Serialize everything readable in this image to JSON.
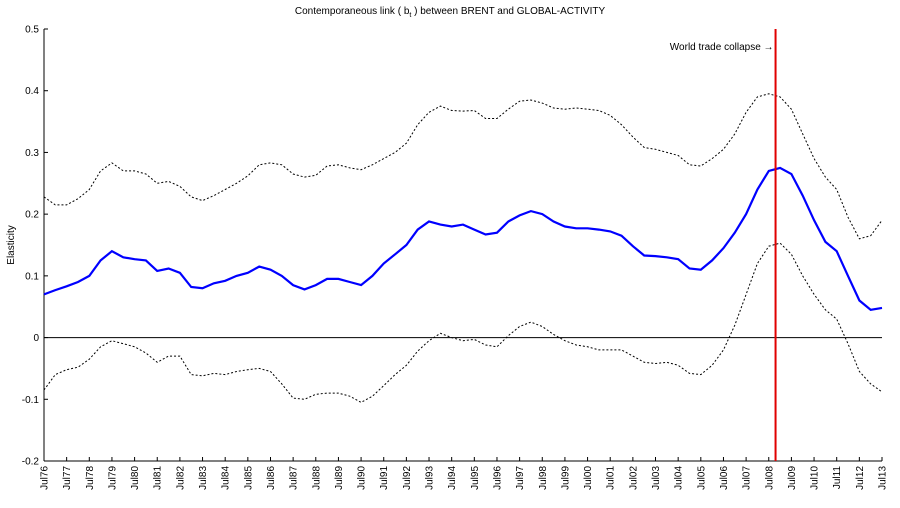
{
  "chart_data": {
    "type": "line",
    "title": "Contemporaneous link ( b",
    "title_subscript": "t",
    "title_end": " ) between BRENT and GLOBAL-ACTIVITY",
    "ylabel": "Elasticity",
    "annotation": {
      "text": "World trade collapse →",
      "color": "#e00000"
    },
    "reference_line": 0,
    "categories": [
      "Jul76",
      null,
      "Jul77",
      null,
      "Jul78",
      null,
      "Jul79",
      null,
      "Jul80",
      null,
      "Jul81",
      null,
      "Jul82",
      null,
      "Jul83",
      null,
      "Jul84",
      null,
      "Jul85",
      null,
      "Jul86",
      null,
      "Jul87",
      null,
      "Jul88",
      null,
      "Jul89",
      null,
      "Jul90",
      null,
      "Jul91",
      null,
      "Jul92",
      null,
      "Jul93",
      null,
      "Jul94",
      null,
      "Jul95",
      null,
      "Jul96",
      null,
      "Jul97",
      null,
      "Jul98",
      null,
      "Jul99",
      null,
      "Jul00",
      null,
      "Jul01",
      null,
      "Jul02",
      null,
      "Jul03",
      null,
      "Jul04",
      null,
      "Jul05",
      null,
      "Jul06",
      null,
      "Jul07",
      null,
      "Jul08",
      null,
      "Jul09",
      null,
      "Jul10",
      null,
      "Jul11",
      null,
      "Jul12",
      null,
      "Jul13"
    ],
    "series": [
      {
        "color": "#0000ff",
        "dashed": false,
        "values": [
          0.07,
          0.077,
          0.083,
          0.09,
          0.1,
          0.125,
          0.14,
          0.13,
          0.127,
          0.125,
          0.108,
          0.112,
          0.105,
          0.082,
          0.08,
          0.088,
          0.092,
          0.1,
          0.105,
          0.115,
          0.11,
          0.1,
          0.085,
          0.078,
          0.085,
          0.095,
          0.095,
          0.09,
          0.085,
          0.1,
          0.12,
          0.135,
          0.15,
          0.175,
          0.188,
          0.183,
          0.18,
          0.183,
          0.175,
          0.167,
          0.17,
          0.188,
          0.198,
          0.205,
          0.2,
          0.188,
          0.18,
          0.177,
          0.177,
          0.175,
          0.172,
          0.165,
          0.148,
          0.133,
          0.132,
          0.13,
          0.127,
          0.112,
          0.11,
          0.125,
          0.145,
          0.17,
          0.2,
          0.24,
          0.27,
          0.275,
          0.265,
          0.23,
          0.19,
          0.155,
          0.14,
          0.1,
          0.06,
          0.045,
          0.048
        ]
      },
      {
        "color": "#000000",
        "dashed": true,
        "values": [
          0.228,
          0.215,
          0.215,
          0.225,
          0.24,
          0.27,
          0.283,
          0.27,
          0.27,
          0.265,
          0.25,
          0.253,
          0.245,
          0.228,
          0.222,
          0.23,
          0.24,
          0.25,
          0.262,
          0.28,
          0.283,
          0.28,
          0.265,
          0.26,
          0.263,
          0.278,
          0.28,
          0.275,
          0.272,
          0.28,
          0.29,
          0.3,
          0.315,
          0.345,
          0.365,
          0.375,
          0.368,
          0.367,
          0.368,
          0.355,
          0.355,
          0.37,
          0.383,
          0.385,
          0.38,
          0.372,
          0.37,
          0.372,
          0.37,
          0.368,
          0.36,
          0.345,
          0.325,
          0.308,
          0.305,
          0.3,
          0.295,
          0.28,
          0.278,
          0.29,
          0.305,
          0.33,
          0.365,
          0.39,
          0.395,
          0.39,
          0.37,
          0.33,
          0.29,
          0.26,
          0.24,
          0.195,
          0.16,
          0.165,
          0.19
        ]
      },
      {
        "color": "#000000",
        "dashed": true,
        "values": [
          -0.085,
          -0.06,
          -0.052,
          -0.048,
          -0.035,
          -0.015,
          -0.005,
          -0.01,
          -0.015,
          -0.025,
          -0.04,
          -0.03,
          -0.03,
          -0.06,
          -0.062,
          -0.058,
          -0.06,
          -0.055,
          -0.052,
          -0.05,
          -0.055,
          -0.075,
          -0.098,
          -0.1,
          -0.092,
          -0.09,
          -0.09,
          -0.095,
          -0.105,
          -0.095,
          -0.078,
          -0.06,
          -0.045,
          -0.022,
          -0.005,
          0.007,
          0,
          -0.005,
          -0.003,
          -0.012,
          -0.015,
          0.003,
          0.018,
          0.025,
          0.018,
          0.005,
          -0.005,
          -0.012,
          -0.015,
          -0.02,
          -0.02,
          -0.02,
          -0.03,
          -0.04,
          -0.042,
          -0.04,
          -0.045,
          -0.058,
          -0.06,
          -0.045,
          -0.02,
          0.02,
          0.07,
          0.12,
          0.148,
          0.153,
          0.135,
          0.1,
          0.07,
          0.045,
          0.03,
          -0.01,
          -0.055,
          -0.075,
          -0.088
        ]
      }
    ],
    "ylim": [
      -0.2,
      0.5
    ],
    "yticks": [
      -0.2,
      -0.1,
      0,
      0.1,
      0.2,
      0.3,
      0.4,
      0.5
    ]
  }
}
